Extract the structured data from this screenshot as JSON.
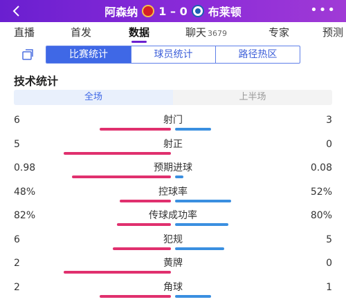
{
  "header": {
    "home_team": "阿森纳",
    "away_team": "布莱顿",
    "score": "1 – 0",
    "home_logo": "arsenal-crest-icon",
    "away_logo": "brighton-crest-icon"
  },
  "tabs": [
    {
      "label": "直播"
    },
    {
      "label": "首发"
    },
    {
      "label": "数据",
      "active": true
    },
    {
      "label": "聊天",
      "count": "3679"
    },
    {
      "label": "专家"
    },
    {
      "label": "预测"
    }
  ],
  "subtabs": [
    {
      "label": "比赛统计",
      "active": true
    },
    {
      "label": "球员统计"
    },
    {
      "label": "路径热区"
    }
  ],
  "section_title": "技术统计",
  "period_toggle": [
    {
      "label": "全场",
      "active": true
    },
    {
      "label": "上半场"
    }
  ],
  "colors": {
    "header_purple": "#7a25d6",
    "home_bar": "#e0306e",
    "away_bar": "#3a8fe0",
    "subtab_blue": "#3f68e6"
  },
  "stats": [
    {
      "label": "射门",
      "home": "6",
      "away": "3",
      "home_share": 0.667,
      "away_share": 0.333
    },
    {
      "label": "射正",
      "home": "5",
      "away": "0",
      "home_share": 1.0,
      "away_share": 0.0
    },
    {
      "label": "预期进球",
      "home": "0.98",
      "away": "0.08",
      "home_share": 0.925,
      "away_share": 0.075
    },
    {
      "label": "控球率",
      "home": "48%",
      "away": "52%",
      "home_share": 0.48,
      "away_share": 0.52
    },
    {
      "label": "传球成功率",
      "home": "82%",
      "away": "80%",
      "home_share": 0.506,
      "away_share": 0.494
    },
    {
      "label": "犯规",
      "home": "6",
      "away": "5",
      "home_share": 0.545,
      "away_share": 0.455
    },
    {
      "label": "黄牌",
      "home": "2",
      "away": "0",
      "home_share": 1.0,
      "away_share": 0.0
    },
    {
      "label": "角球",
      "home": "2",
      "away": "1",
      "home_share": 0.667,
      "away_share": 0.333
    }
  ]
}
